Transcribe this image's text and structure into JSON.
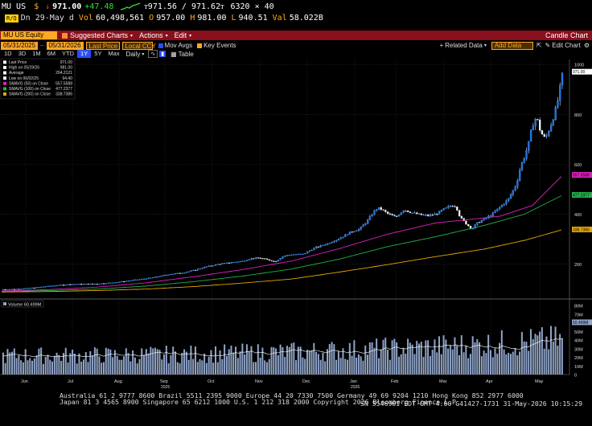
{
  "header": {
    "ticker": "MU US",
    "currency": "$",
    "direction_arrow": "↓",
    "last": "971.00",
    "change": "+47.48",
    "bid_ask": "ᴛ971.56 / 971.62ᴛ",
    "size": "6320 × 40",
    "flag_label": "R/Q",
    "date_line": "Dn 29-May d",
    "vol_label": "Vol",
    "vol": "60,498,561",
    "o_label": "O",
    "open": "957.00",
    "h_label": "H",
    "high": "981.00",
    "l_label": "L",
    "low": "940.51",
    "val_label": "Val",
    "val": "58.022B"
  },
  "menubar": {
    "security": "MU US Equity",
    "suggested": "Suggested Charts",
    "actions": "Actions",
    "edit": "Edit",
    "title": "Candle Chart"
  },
  "toolbar": {
    "start_date": "05/31/2025",
    "end_date": "05/31/2026",
    "price_field": "Last Price",
    "currency": "Local CCY",
    "mov_avgs": "Mov Avgs",
    "key_events": "Key Events",
    "related": "Related Data",
    "add_data": "Add Data",
    "edit_chart": "Edit Chart",
    "periods": [
      "1D",
      "3D",
      "1M",
      "6M",
      "YTD",
      "1Y",
      "5Y",
      "Max"
    ],
    "active_period": "1Y",
    "freq": "Daily",
    "table": "Table"
  },
  "legend": [
    {
      "label": "Last Price",
      "value": "971.00",
      "color": "#ffffff"
    },
    {
      "label": "High on 05/29/26",
      "value": "981.00",
      "color": "#ffffff"
    },
    {
      "label": "Average",
      "value": "294.2121",
      "color": "#ffffff"
    },
    {
      "label": "Low on 06/02/25",
      "value": "94.40",
      "color": "#ffffff"
    },
    {
      "label": "SMAVG (50)  on Close",
      "value": "557.5588",
      "color": "#e020c0"
    },
    {
      "label": "SMAVG (100)  on Close",
      "value": "477.2377",
      "color": "#22b14c"
    },
    {
      "label": "SMAVG (200)  on Close",
      "value": "338.7386",
      "color": "#e8a800"
    }
  ],
  "price_badges": [
    {
      "value": "971.00",
      "color": "#ffffff"
    },
    {
      "value": "557.5588",
      "color": "#e020c0"
    },
    {
      "value": "477.2377",
      "color": "#22b14c"
    },
    {
      "value": "338.7386",
      "color": "#e8a800"
    }
  ],
  "volume_badge": "60.499M",
  "volume_legend": "Volume  60.499M",
  "footer": {
    "line1": "Australia 61 2 9777 8600  Brazil 5511 2395 9000  Europe 44 20 7330 7500  Germany 49 69 9204 1210  Hong Kong 852 2977 6000",
    "line2": "Japan 81 3 4565 8900       Singapore 65 6212 1000       U.S. 1 212 318 2000       Copyright 2026 Bloomberg Finance L.P.",
    "line3": "SN 554690I EDT  GMT-4:00 G41427-1731 31-May-2026 10:15:29"
  },
  "chart_data": {
    "type": "candlestick",
    "x_ticks": [
      "Jun",
      "Jul",
      "Aug",
      "Sep",
      "Oct",
      "Nov",
      "Dec",
      "Jan",
      "Feb",
      "Mar",
      "Apr",
      "May"
    ],
    "year_labels": [
      "2025",
      "2026"
    ],
    "y_ticks": [
      200,
      400,
      600,
      800,
      1000
    ],
    "ylim": [
      60,
      1020
    ],
    "volume_ticks": [
      "0",
      "10M",
      "20M",
      "30M",
      "40M",
      "50M",
      "60M",
      "70M",
      "80M"
    ],
    "volume_ylim": [
      0,
      80
    ],
    "price_points": [
      [
        0,
        98
      ],
      [
        20,
        100
      ],
      [
        40,
        105
      ],
      [
        60,
        112
      ],
      [
        80,
        118
      ],
      [
        100,
        120
      ],
      [
        120,
        121
      ],
      [
        140,
        126
      ],
      [
        160,
        134
      ],
      [
        180,
        142
      ],
      [
        195,
        150
      ],
      [
        210,
        160
      ],
      [
        225,
        165
      ],
      [
        240,
        176
      ],
      [
        255,
        190
      ],
      [
        270,
        200
      ],
      [
        285,
        206
      ],
      [
        300,
        212
      ],
      [
        310,
        222
      ],
      [
        320,
        225
      ],
      [
        330,
        218
      ],
      [
        340,
        210
      ],
      [
        350,
        232
      ],
      [
        360,
        238
      ],
      [
        375,
        240
      ],
      [
        390,
        266
      ],
      [
        405,
        282
      ],
      [
        420,
        303
      ],
      [
        435,
        330
      ],
      [
        445,
        340
      ],
      [
        455,
        375
      ],
      [
        465,
        420
      ],
      [
        470,
        424
      ],
      [
        480,
        402
      ],
      [
        490,
        388
      ],
      [
        500,
        418
      ],
      [
        510,
        406
      ],
      [
        520,
        398
      ],
      [
        530,
        394
      ],
      [
        540,
        400
      ],
      [
        550,
        420
      ],
      [
        560,
        436
      ],
      [
        565,
        432
      ],
      [
        570,
        387
      ],
      [
        578,
        360
      ],
      [
        585,
        340
      ],
      [
        590,
        362
      ],
      [
        600,
        380
      ],
      [
        610,
        400
      ],
      [
        620,
        430
      ],
      [
        630,
        460
      ],
      [
        640,
        520
      ],
      [
        645,
        590
      ],
      [
        650,
        630
      ],
      [
        655,
        680
      ],
      [
        660,
        758
      ],
      [
        665,
        790
      ],
      [
        670,
        730
      ],
      [
        676,
        700
      ],
      [
        684,
        770
      ],
      [
        690,
        830
      ],
      [
        694,
        900
      ],
      [
        698,
        971
      ]
    ],
    "sma50_points": [
      [
        0,
        92
      ],
      [
        60,
        98
      ],
      [
        120,
        108
      ],
      [
        180,
        125
      ],
      [
        240,
        150
      ],
      [
        300,
        178
      ],
      [
        360,
        212
      ],
      [
        420,
        262
      ],
      [
        480,
        320
      ],
      [
        540,
        365
      ],
      [
        580,
        378
      ],
      [
        620,
        392
      ],
      [
        660,
        435
      ],
      [
        698,
        557.56
      ]
    ],
    "sma100_points": [
      [
        0,
        90
      ],
      [
        60,
        94
      ],
      [
        120,
        100
      ],
      [
        180,
        112
      ],
      [
        240,
        130
      ],
      [
        300,
        152
      ],
      [
        360,
        180
      ],
      [
        420,
        220
      ],
      [
        480,
        270
      ],
      [
        540,
        310
      ],
      [
        600,
        355
      ],
      [
        650,
        400
      ],
      [
        698,
        477.24
      ]
    ],
    "sma200_points": [
      [
        0,
        88
      ],
      [
        60,
        90
      ],
      [
        120,
        94
      ],
      [
        180,
        100
      ],
      [
        240,
        110
      ],
      [
        300,
        124
      ],
      [
        360,
        140
      ],
      [
        420,
        168
      ],
      [
        480,
        198
      ],
      [
        540,
        230
      ],
      [
        600,
        260
      ],
      [
        650,
        295
      ],
      [
        698,
        338.74
      ]
    ]
  }
}
